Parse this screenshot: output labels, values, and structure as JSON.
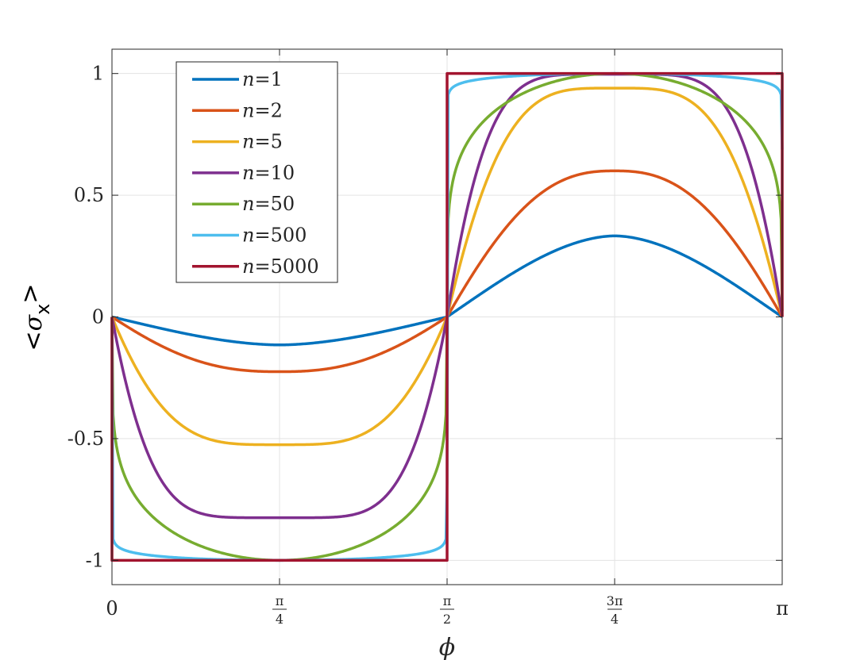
{
  "chart_data": {
    "type": "line",
    "title": "",
    "xlabel": "ϕ",
    "ylabel_parts": {
      "open": "<",
      "symbol": "σ",
      "sub": "x",
      "close": ">"
    },
    "xlim": [
      0,
      3.14159265
    ],
    "ylim": [
      -1.1,
      1.1
    ],
    "grid": true,
    "legend_position": "top-left",
    "x_ticks": [
      {
        "value": 0,
        "label": "0"
      },
      {
        "value": 0.785398,
        "num": "π",
        "den": "4"
      },
      {
        "value": 1.570796,
        "num": "π",
        "den": "2"
      },
      {
        "value": 2.356194,
        "num": "3π",
        "den": "4"
      },
      {
        "value": 3.14159265,
        "label": "π"
      }
    ],
    "y_ticks": [
      {
        "value": 1,
        "label": "1"
      },
      {
        "value": 0.5,
        "label": "0.5"
      },
      {
        "value": 0,
        "label": "0"
      },
      {
        "value": -0.5,
        "label": "-0.5"
      },
      {
        "value": -1,
        "label": "-1"
      }
    ],
    "series": [
      {
        "name": "n=1",
        "n": 1,
        "color": "#0072BD",
        "min_value": -0.115,
        "max_value": 0.333
      },
      {
        "name": "n=2",
        "n": 2,
        "color": "#D95319",
        "min_value": -0.225,
        "max_value": 0.6
      },
      {
        "name": "n=5",
        "n": 5,
        "color": "#EDB120",
        "min_value": -0.525,
        "max_value": 0.94
      },
      {
        "name": "n=10",
        "n": 10,
        "color": "#7E2F8E",
        "min_value": -0.825,
        "max_value": 0.997
      },
      {
        "name": "n=50",
        "n": 50,
        "color": "#77AC30",
        "min_value": -1.0,
        "max_value": 1.0
      },
      {
        "name": "n=500",
        "n": 500,
        "color": "#4DBEEE",
        "min_value": -1.0,
        "max_value": 1.0
      },
      {
        "name": "n=5000",
        "n": 5000,
        "color": "#A2142F",
        "min_value": -1.0,
        "max_value": 1.0
      }
    ],
    "legend": {
      "entries": [
        {
          "var": "n",
          "eq": "=1"
        },
        {
          "var": "n",
          "eq": "=2"
        },
        {
          "var": "n",
          "eq": "=5"
        },
        {
          "var": "n",
          "eq": "=10"
        },
        {
          "var": "n",
          "eq": "=50"
        },
        {
          "var": "n",
          "eq": "=500"
        },
        {
          "var": "n",
          "eq": "=5000"
        }
      ]
    }
  }
}
